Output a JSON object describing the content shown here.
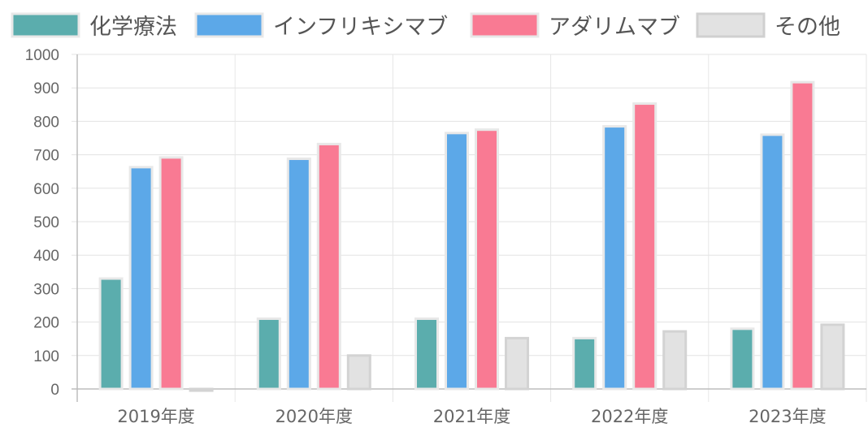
{
  "chart_data": {
    "type": "bar",
    "categories": [
      "2019年度",
      "2020年度",
      "2021年度",
      "2022年度",
      "2023年度"
    ],
    "series": [
      {
        "name": "化学療法",
        "values": [
          330,
          210,
          210,
          152,
          180
        ],
        "color": "#5badad"
      },
      {
        "name": "インフリキシマブ",
        "values": [
          663,
          688,
          765,
          785,
          760
        ],
        "color": "#5ca8e8"
      },
      {
        "name": "アダリムマブ",
        "values": [
          692,
          732,
          775,
          853,
          917
        ],
        "color": "#f97a93"
      },
      {
        "name": "その他",
        "values": [
          -5,
          100,
          152,
          172,
          192
        ],
        "color": "#e2e2e2"
      }
    ],
    "ylim": [
      0,
      1000
    ],
    "yticks": [
      0,
      100,
      200,
      300,
      400,
      500,
      600,
      700,
      800,
      900,
      1000
    ],
    "grid": true,
    "legend_position": "top",
    "title": "",
    "xlabel": "",
    "ylabel": ""
  }
}
